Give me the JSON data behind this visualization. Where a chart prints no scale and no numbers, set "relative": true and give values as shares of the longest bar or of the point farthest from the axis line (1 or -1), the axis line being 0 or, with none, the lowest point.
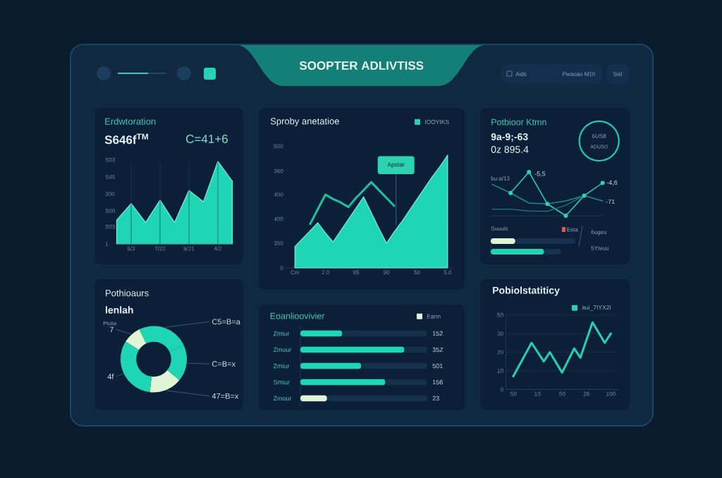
{
  "chart_data": [
    {
      "type": "other",
      "title": "SOOPTER ADLIVTISS",
      "annotations": [
        "Aids",
        "Pwaoao M10",
        "Sisl"
      ]
    },
    {
      "type": "area",
      "title": "Erdwtoration",
      "subtitle": "S646f$^{TM}$",
      "relative": true,
      "annotations": [
        "C=41+6",
        "S03",
        "S45",
        "300",
        "S00",
        "S03",
        "1"
      ],
      "categories": [
        null,
        "6/3",
        null,
        "7/22",
        null,
        "9/21",
        null,
        "4/2",
        null
      ],
      "values": [
        0.29,
        0.49,
        0.26,
        0.53,
        0.26,
        0.65,
        0.51,
        1,
        0.76
      ],
      "color": "#1fd6b4",
      "grid": "x"
    },
    {
      "type": "area",
      "title": "Sproby anetatioe",
      "relative": true,
      "categories": [
        "Cm",
        null,
        null,
        null,
        "2.0",
        null,
        null,
        null,
        "95",
        null,
        null,
        null,
        "90",
        null,
        null,
        null,
        "50",
        null,
        null,
        null,
        "5.0"
      ],
      "series": [
        {
          "name": "IOOYIKS",
          "type": "area",
          "color": "#1fd6b4",
          "values": [
            0.19,
            0.26,
            0.33,
            0.4,
            0.31,
            0.23,
            0.33,
            0.43,
            0.53,
            0.63,
            0.49,
            0.35,
            0.22,
            0.32,
            0.41,
            0.51,
            0.61,
            0.71,
            0.81,
            0.9,
            1
          ]
        },
        {
          "type": "line",
          "color": "#1fbfa2",
          "values": [
            null,
            null,
            0.39,
            0.52,
            0.65,
            0.61,
            0.58,
            0.54,
            0.62,
            0.69,
            0.76,
            0.69,
            0.62,
            0.55,
            null,
            null,
            null,
            null,
            null,
            null,
            null
          ]
        }
      ],
      "annotations": [
        "S00",
        "360",
        "400",
        "400",
        "350",
        "0",
        {
          "text": "Apstar",
          "y": 0.38
        }
      ],
      "legend": "top right"
    },
    {
      "type": "line",
      "title": "Potbioor Ktmn",
      "subtitle": "9a-9;-63",
      "relative": true,
      "categories": [
        null,
        null,
        null,
        null,
        null,
        null,
        null
      ],
      "series": [
        {
          "color": "#2ad4b6",
          "marker": "circle",
          "values": [
            null,
            0.52,
            1,
            0.27,
            0,
            0.46,
            0.75
          ]
        },
        {
          "color": "#1e8d86",
          "values": [
            0.72,
            0.52,
            0.29,
            0.27,
            0.34,
            0.46,
            0.34
          ]
        },
        {
          "color": "#1d6f6d",
          "values": [
            0.15,
            0.15,
            0.11,
            0.1,
            0.24,
            0.46,
            null
          ]
        }
      ],
      "annotations": [
        "0z 895.4",
        "-5,5",
        "-4,6",
        "-71",
        "bu:a/13"
      ]
    },
    {
      "type": "donut",
      "categories": [
        null
      ],
      "values": [
        100
      ],
      "colors": [
        "#23c9ae"
      ],
      "annotations": [
        "6US8",
        "ADUSO"
      ]
    },
    {
      "type": "bar",
      "orientation": "horizontal",
      "relative": true,
      "stacked": true,
      "categories": [
        null,
        null
      ],
      "series": [
        {
          "colors": [
            "#dff5d6",
            "#1fd6b4"
          ],
          "values": [
            0.29,
            0.63
          ]
        },
        {
          "color": "#17324c",
          "values": [
            0.71,
            0.2
          ]
        }
      ],
      "annotations": [
        "Suuuis",
        "Esta",
        "6ogeu",
        "5Yteuu"
      ]
    },
    {
      "type": "donut",
      "title": "Pothioaurs",
      "subtitle": "lenlah",
      "categories": [
        "7",
        "C5=B=a",
        "C=B=x",
        "47=B=x",
        "4f"
      ],
      "values": [
        9,
        25,
        18,
        16,
        32
      ],
      "colors": [
        "#dff5d6",
        "#1fd6b4",
        "#1fd6b4",
        "#dff5d6",
        "#1fd6b4"
      ],
      "annotations": [
        "Ptobe"
      ]
    },
    {
      "type": "bar",
      "orientation": "horizontal",
      "relative": true,
      "stacked": true,
      "title": "Eoanlioovivier",
      "categories": [
        "Zmiur",
        "Zmour",
        "Zmiur",
        "Smiur",
        "Zmour"
      ],
      "series": [
        {
          "name": "Eann",
          "color": "#dff5d6",
          "colors": [
            "#1fd6b4",
            "#1fd6b4",
            "#1fd6b4",
            "#1fd6b4",
            "#dff5d6"
          ],
          "values": [
            0.33,
            0.82,
            0.48,
            0.67,
            0.21
          ]
        },
        {
          "color": "#15304a",
          "values": [
            0.67,
            0.18,
            0.52,
            0.33,
            0.79
          ]
        }
      ],
      "annotations": [
        "152",
        "35Z",
        "501",
        "156",
        "23"
      ],
      "legend": "top right"
    },
    {
      "type": "line",
      "title": "Pobiolstatiticy",
      "categories": [
        "S0",
        null,
        null,
        null,
        "1S",
        null,
        null,
        null,
        "S0",
        null,
        null,
        null,
        "26",
        null,
        null,
        null,
        "100"
      ],
      "series": [
        {
          "name": "aui_7IYX2I",
          "color": "#22d3b2",
          "values": [
            7,
            13,
            19,
            25,
            20,
            15,
            20,
            14.5,
            9,
            15.5,
            22,
            17,
            26.5,
            36,
            30.5,
            25,
            30
          ]
        }
      ],
      "ylim": [
        0,
        40
      ],
      "yticks": [
        0,
        10,
        20,
        30,
        {
          "value": 40,
          "label": "S0"
        }
      ],
      "grid": "y",
      "legend": "top right"
    }
  ]
}
